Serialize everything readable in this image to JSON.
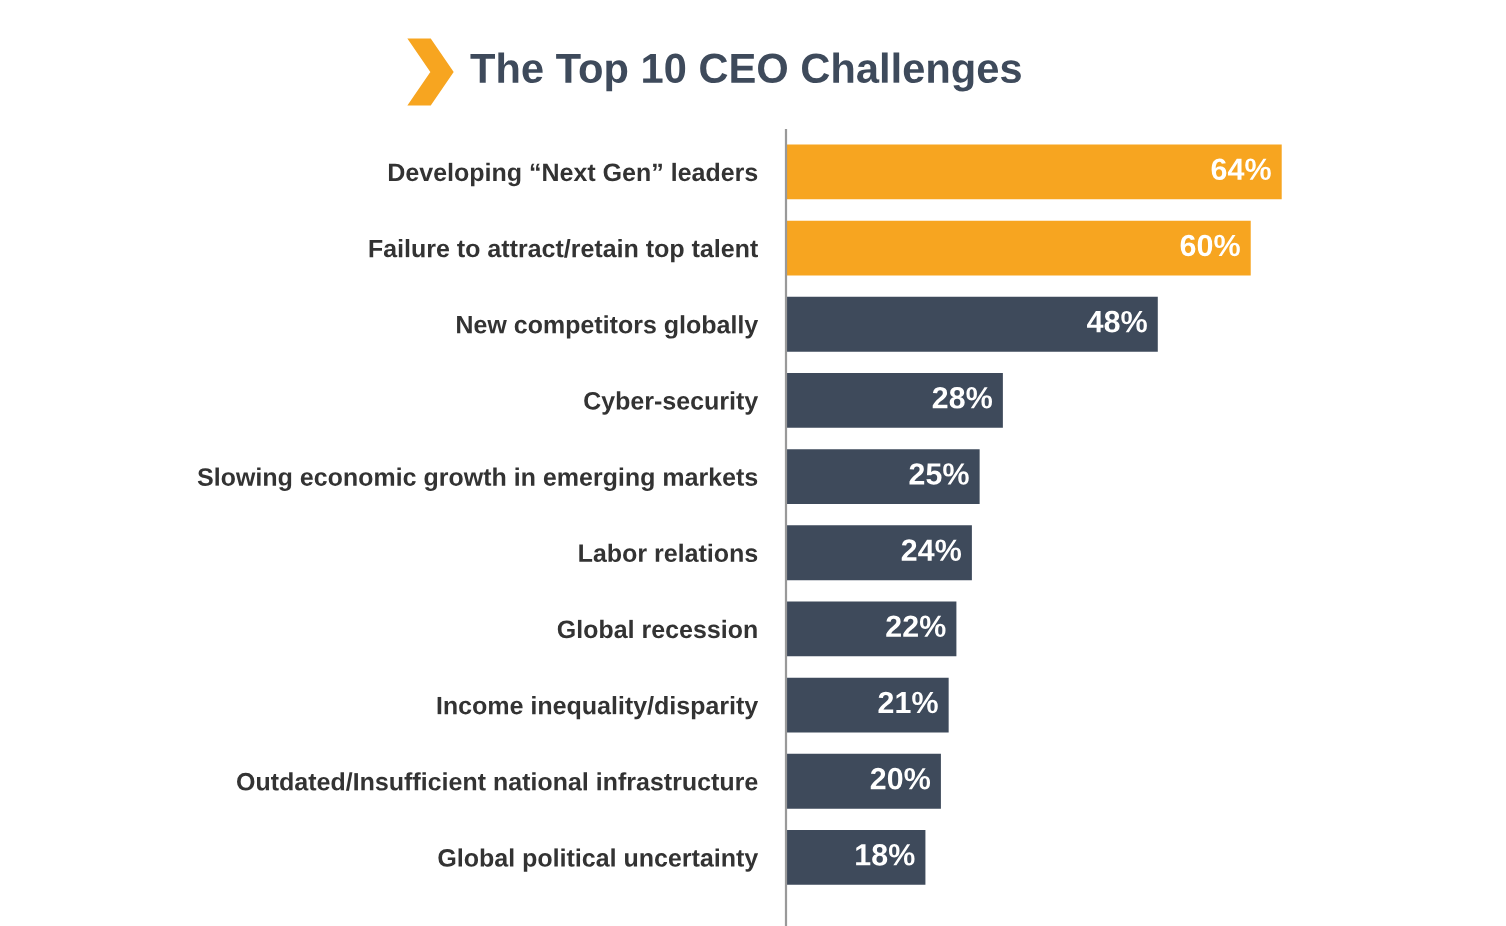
{
  "chart_data": {
    "type": "bar",
    "orientation": "horizontal",
    "title": "The Top 10 CEO Challenges",
    "categories": [
      "Developing “Next Gen” leaders",
      "Failure to attract/retain top talent",
      "New competitors globally",
      "Cyber-security",
      "Slowing economic growth in emerging markets",
      "Labor relations",
      "Global recession",
      "Income inequality/disparity",
      "Outdated/Insufficient national infrastructure",
      "Global political uncertainty"
    ],
    "values": [
      64,
      60,
      48,
      28,
      25,
      24,
      22,
      21,
      20,
      18
    ],
    "value_labels": [
      "64%",
      "60%",
      "48%",
      "28%",
      "25%",
      "24%",
      "22%",
      "21%",
      "20%",
      "18%"
    ],
    "colors": [
      "#f7a520",
      "#f7a520",
      "#3e4a5b",
      "#3e4a5b",
      "#3e4a5b",
      "#3e4a5b",
      "#3e4a5b",
      "#3e4a5b",
      "#3e4a5b",
      "#3e4a5b"
    ],
    "grid": false
  }
}
